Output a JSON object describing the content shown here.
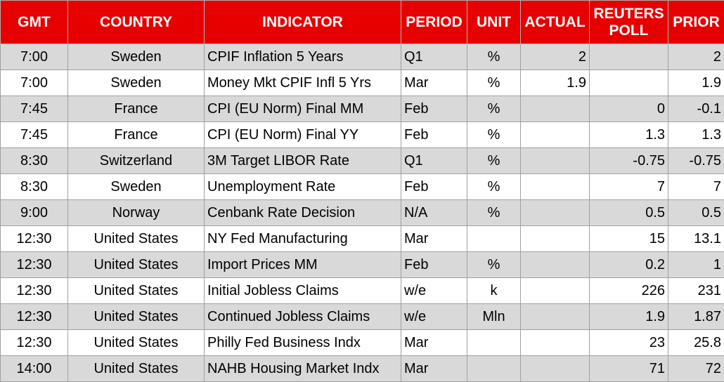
{
  "table": {
    "header": [
      "GMT",
      "COUNTRY",
      "INDICATOR",
      "PERIOD",
      "UNIT",
      "ACTUAL",
      "REUTERS POLL",
      "PRIOR"
    ],
    "rows": [
      [
        "7:00",
        "Sweden",
        "CPIF Inflation 5 Years",
        "Q1",
        "%",
        "2",
        null,
        "2"
      ],
      [
        "7:00",
        "Sweden",
        "Money Mkt CPIF Infl 5 Yrs",
        "Mar",
        "%",
        "1.9",
        null,
        "1.9"
      ],
      [
        "7:45",
        "France",
        "CPI (EU Norm) Final MM",
        "Feb",
        "%",
        null,
        "0",
        "-0.1"
      ],
      [
        "7:45",
        "France",
        "CPI (EU Norm) Final YY",
        "Feb",
        "%",
        null,
        "1.3",
        "1.3"
      ],
      [
        "8:30",
        "Switzerland",
        "3M Target LIBOR Rate",
        "Q1",
        "%",
        null,
        "-0.75",
        "-0.75"
      ],
      [
        "8:30",
        "Sweden",
        "Unemployment Rate",
        "Feb",
        "%",
        null,
        "7",
        "7"
      ],
      [
        "9:00",
        "Norway",
        "Cenbank Rate Decision",
        "N/A",
        "%",
        null,
        "0.5",
        "0.5"
      ],
      [
        "12:30",
        "United States",
        "NY Fed Manufacturing",
        "Mar",
        null,
        null,
        "15",
        "13.1"
      ],
      [
        "12:30",
        "United States",
        "Import Prices MM",
        "Feb",
        "%",
        null,
        "0.2",
        "1"
      ],
      [
        "12:30",
        "United States",
        "Initial Jobless Claims",
        "w/e",
        "k",
        null,
        "226",
        "231"
      ],
      [
        "12:30",
        "United States",
        "Continued Jobless Claims",
        "w/e",
        "Mln",
        null,
        "1.9",
        "1.87"
      ],
      [
        "12:30",
        "United States",
        "Philly Fed Business Indx",
        "Mar",
        null,
        null,
        "23",
        "25.8"
      ],
      [
        "14:00",
        "United States",
        "NAHB Housing Market Indx",
        "Mar",
        null,
        null,
        "71",
        "72"
      ]
    ]
  }
}
